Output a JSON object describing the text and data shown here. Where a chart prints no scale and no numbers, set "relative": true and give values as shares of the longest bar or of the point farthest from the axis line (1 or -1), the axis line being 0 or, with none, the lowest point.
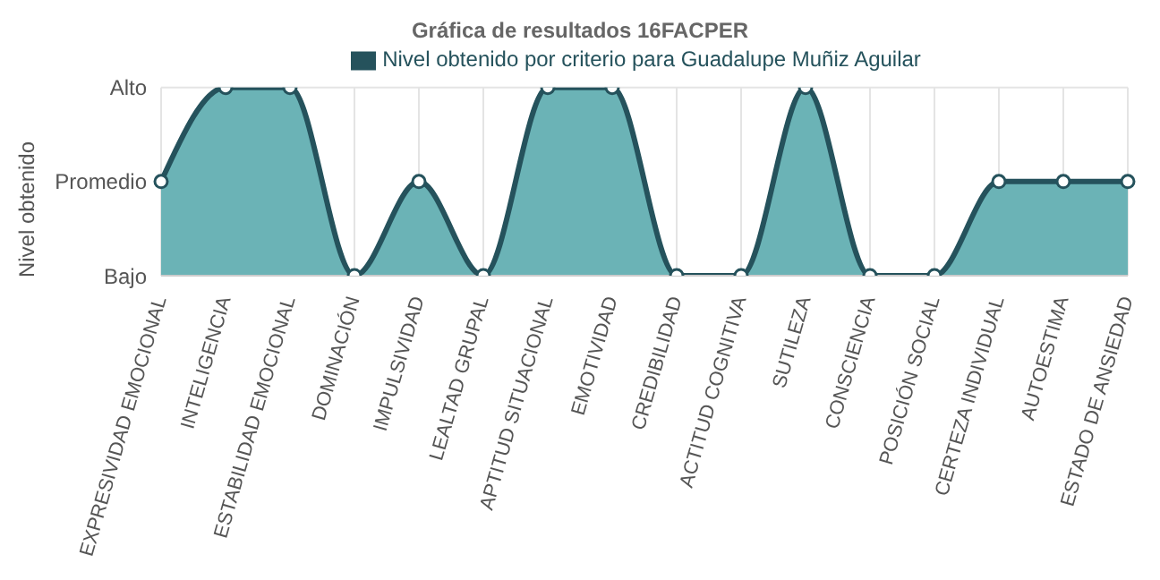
{
  "chart_data": {
    "type": "area",
    "title": "Gráfica de resultados 16FACPER",
    "ylabel": "Nivel obtenido",
    "categories": [
      "EXPRESIVIDAD EMOCIONAL",
      "INTELIGENCIA",
      "ESTABILIDAD EMOCIONAL",
      "DOMINACIÓN",
      "IMPULSIVIDAD",
      "LEALTAD GRUPAL",
      "APTITUD SITUACIONAL",
      "EMOTIVIDAD",
      "CREDIBILIDAD",
      "ACTITUD COGNITIVA",
      "SUTILEZA",
      "CONSCIENCIA",
      "POSICIÓN SOCIAL",
      "CERTEZA INDIVIDUAL",
      "AUTOESTIMA",
      "ESTADO DE ANSIEDAD"
    ],
    "series": [
      {
        "name": "Nivel obtenido por criterio para Guadalupe Muñiz Aguilar",
        "color": "#6bb3b6",
        "values": [
          0.5,
          1,
          1,
          0,
          0.5,
          0,
          1,
          1,
          0,
          0,
          1,
          0,
          0,
          0.5,
          0.5,
          0.5
        ]
      }
    ],
    "relative": true,
    "annotations": [
      "Bajo",
      "Promedio",
      "Alto"
    ],
    "grid": true,
    "legend": "top",
    "marker": "circle",
    "line_style": "solid"
  }
}
